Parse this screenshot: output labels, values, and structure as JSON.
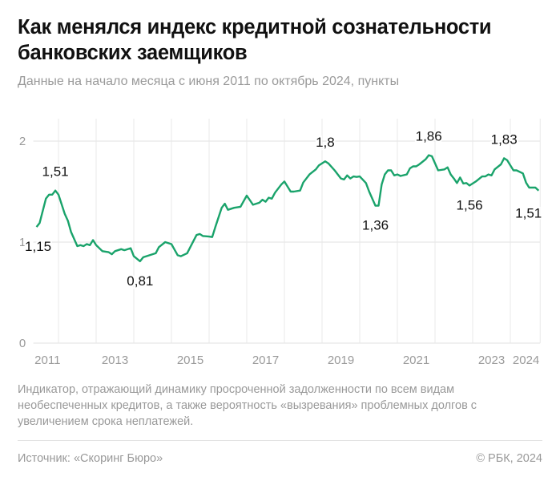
{
  "header": {
    "title": "Как менялся индекс кредитной сознательности банковских заемщиков",
    "subtitle": "Данные на начало месяца с июня 2011 по октябрь 2024, пункты"
  },
  "footer": {
    "note": "Индикатор, отражающий динамику просроченной задолженности по всем видам необеспеченных кредитов, а также вероятность «вызревания» проблемных долгов с увеличением срока неплатежей.",
    "source": "Источник: «Скоринг Бюро»",
    "copyright": "© РБК, 2024"
  },
  "chart_data": {
    "type": "line",
    "title": "",
    "xlabel": "",
    "ylabel": "",
    "ylim": [
      0,
      2.2
    ],
    "xlim": [
      "2011-06",
      "2024-10"
    ],
    "yticks": [
      0,
      1,
      2
    ],
    "ytick_labels": [
      "0",
      "1",
      "2"
    ],
    "xtick_labels": [
      "2011",
      "2013",
      "2015",
      "2017",
      "2019",
      "2021",
      "2023",
      "2024"
    ],
    "grid": true,
    "line_color": "#1aa36b",
    "series": [
      {
        "x": [
          "2011-06",
          "2011-07",
          "2011-09",
          "2011-10",
          "2011-11",
          "2011-12",
          "2012-01",
          "2012-03",
          "2012-04",
          "2012-05",
          "2012-07",
          "2012-08",
          "2012-09",
          "2012-10",
          "2012-11",
          "2012-12",
          "2013-01",
          "2013-03",
          "2013-05",
          "2013-06",
          "2013-07",
          "2013-09",
          "2013-10",
          "2013-12",
          "2014-01",
          "2014-03",
          "2014-04",
          "2014-08",
          "2014-09",
          "2014-11",
          "2015-01",
          "2015-03",
          "2015-04",
          "2015-06",
          "2015-07",
          "2015-09",
          "2015-10",
          "2015-11",
          "2016-01",
          "2016-02",
          "2016-03",
          "2016-05",
          "2016-06",
          "2016-07",
          "2016-09",
          "2016-11",
          "2017-01",
          "2017-03",
          "2017-05",
          "2017-06",
          "2017-07",
          "2017-08",
          "2017-09",
          "2017-10",
          "2017-12",
          "2018-01",
          "2018-03",
          "2018-04",
          "2018-06",
          "2018-07",
          "2018-09",
          "2018-11",
          "2018-12",
          "2019-02",
          "2019-03",
          "2019-05",
          "2019-07",
          "2019-08",
          "2019-09",
          "2019-10",
          "2019-11",
          "2019-12",
          "2020-01",
          "2020-03",
          "2020-04",
          "2020-06",
          "2020-07",
          "2020-08",
          "2020-09",
          "2020-10",
          "2020-11",
          "2020-12",
          "2021-01",
          "2021-02",
          "2021-04",
          "2021-05",
          "2021-06",
          "2021-07",
          "2021-08",
          "2021-10",
          "2021-11",
          "2021-12",
          "2022-02",
          "2022-04",
          "2022-05",
          "2022-06",
          "2022-07",
          "2022-08",
          "2022-09",
          "2022-10",
          "2022-11",
          "2022-12",
          "2023-02",
          "2023-04",
          "2023-05",
          "2023-06",
          "2023-07",
          "2023-08",
          "2023-10",
          "2023-11",
          "2023-12",
          "2024-02",
          "2024-03",
          "2024-05",
          "2024-06",
          "2024-07",
          "2024-09",
          "2024-10"
        ],
        "values": [
          1.15,
          1.19,
          1.43,
          1.47,
          1.47,
          1.51,
          1.47,
          1.28,
          1.21,
          1.1,
          0.96,
          0.97,
          0.96,
          0.98,
          0.97,
          1.02,
          0.97,
          0.91,
          0.9,
          0.88,
          0.91,
          0.93,
          0.92,
          0.94,
          0.86,
          0.81,
          0.85,
          0.89,
          0.95,
          1.0,
          0.98,
          0.87,
          0.86,
          0.89,
          0.95,
          1.07,
          1.08,
          1.06,
          1.055,
          1.05,
          1.15,
          1.34,
          1.38,
          1.32,
          1.34,
          1.35,
          1.46,
          1.37,
          1.39,
          1.42,
          1.4,
          1.44,
          1.43,
          1.49,
          1.57,
          1.6,
          1.5,
          1.5,
          1.51,
          1.59,
          1.67,
          1.72,
          1.76,
          1.8,
          1.78,
          1.71,
          1.63,
          1.62,
          1.66,
          1.63,
          1.65,
          1.645,
          1.65,
          1.585,
          1.5,
          1.36,
          1.36,
          1.57,
          1.67,
          1.71,
          1.71,
          1.66,
          1.67,
          1.655,
          1.67,
          1.73,
          1.75,
          1.75,
          1.77,
          1.82,
          1.86,
          1.85,
          1.71,
          1.72,
          1.74,
          1.67,
          1.63,
          1.585,
          1.64,
          1.58,
          1.585,
          1.56,
          1.6,
          1.65,
          1.65,
          1.67,
          1.66,
          1.72,
          1.77,
          1.83,
          1.81,
          1.71,
          1.71,
          1.68,
          1.59,
          1.54,
          1.54,
          1.51
        ]
      }
    ],
    "annotations": [
      {
        "x": "2011-06",
        "value": 1.15,
        "label": "1,15",
        "position": "below"
      },
      {
        "x": "2011-12",
        "value": 1.51,
        "label": "1,51",
        "position": "above"
      },
      {
        "x": "2014-03",
        "value": 0.81,
        "label": "0,81",
        "position": "below"
      },
      {
        "x": "2019-02",
        "value": 1.8,
        "label": "1,8",
        "position": "above"
      },
      {
        "x": "2020-06",
        "value": 1.36,
        "label": "1,36",
        "position": "below"
      },
      {
        "x": "2021-11",
        "value": 1.86,
        "label": "1,86",
        "position": "above"
      },
      {
        "x": "2022-12",
        "value": 1.56,
        "label": "1,56",
        "position": "below"
      },
      {
        "x": "2023-11",
        "value": 1.83,
        "label": "1,83",
        "position": "above"
      },
      {
        "x": "2024-10",
        "value": 1.51,
        "label": "1,51",
        "position": "below"
      }
    ]
  }
}
